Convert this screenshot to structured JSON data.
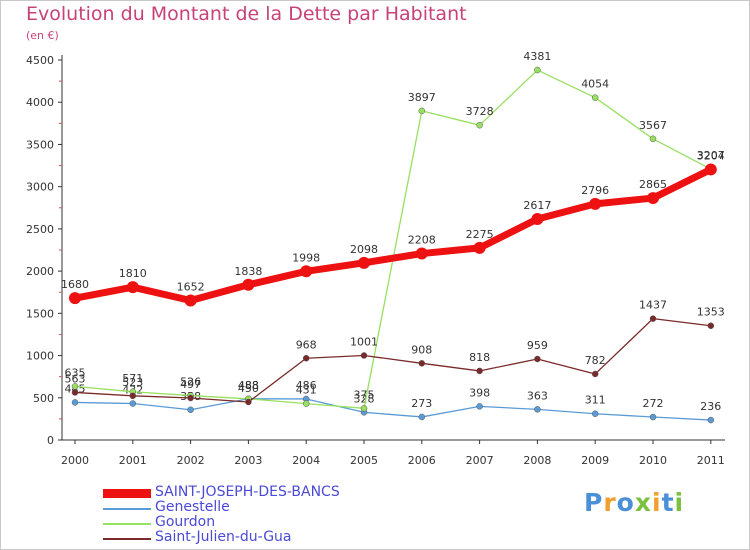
{
  "title": "Evolution du Montant de la Dette par Habitant",
  "unit": "(en €)",
  "logo": {
    "text": "Proxiti",
    "colors": [
      "#4a90d9",
      "#f0a030",
      "#7cc040"
    ]
  },
  "chart_data": {
    "type": "line",
    "title": "Evolution du Montant de la Dette par Habitant",
    "ylabel": "(en €)",
    "xlabel": "",
    "categories": [
      "2000",
      "2001",
      "2002",
      "2003",
      "2004",
      "2005",
      "2006",
      "2007",
      "2008",
      "2009",
      "2010",
      "2011"
    ],
    "ylim": [
      0,
      4500
    ],
    "yticks": [
      0,
      500,
      1000,
      1500,
      2000,
      2500,
      3000,
      3500,
      4000,
      4500
    ],
    "grid": false,
    "legend": "bottom-left",
    "series": [
      {
        "name": "SAINT-JOSEPH-DES-BANCS",
        "color": "#ee1111",
        "emphasis": true,
        "values": [
          1680,
          1810,
          1652,
          1838,
          1998,
          2098,
          2208,
          2275,
          2617,
          2796,
          2865,
          3204
        ]
      },
      {
        "name": "Genestelle",
        "color": "#5b9bd5",
        "values": [
          445,
          432,
          358,
          488,
          486,
          328,
          273,
          398,
          363,
          311,
          272,
          236
        ]
      },
      {
        "name": "Gourdon",
        "color": "#98e060",
        "values": [
          635,
          571,
          526,
          488,
          431,
          375,
          3897,
          3728,
          4381,
          4054,
          3567,
          3207
        ]
      },
      {
        "name": "Saint-Julien-du-Gua",
        "color": "#7a2a2a",
        "values": [
          563,
          523,
          497,
          450,
          968,
          1001,
          908,
          818,
          959,
          782,
          1437,
          1353
        ]
      }
    ]
  }
}
